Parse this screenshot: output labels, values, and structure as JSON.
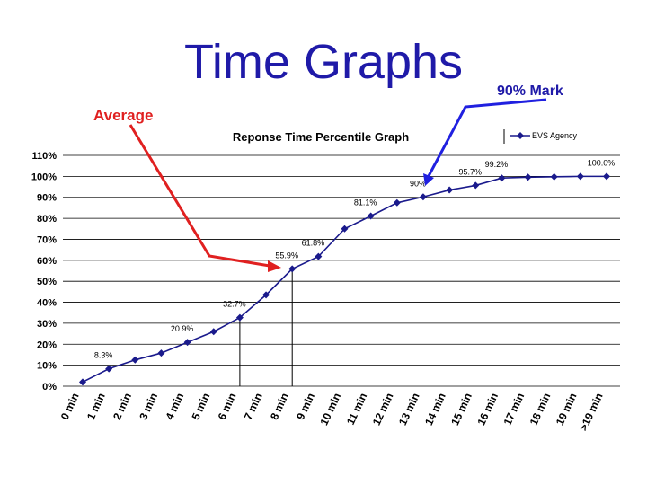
{
  "slide": {
    "title": "Time Graphs",
    "annotations": {
      "average_label": "Average",
      "mark_label": "90% Mark"
    },
    "colors": {
      "title": "#1f1aa8",
      "average_arrow": "#e02020",
      "mark_arrow": "#2020e0",
      "series": "#1a1a8c"
    }
  },
  "chart_data": {
    "type": "line",
    "title": "Reponse Time Percentile Graph",
    "categories": [
      "0 min",
      "1 min",
      "2 min",
      "3 min",
      "4 min",
      "5 min",
      "6 min",
      "7 min",
      "8 min",
      "9 min",
      "10 min",
      "11 min",
      "12 min",
      "13 min",
      "14 min",
      "15 min",
      "16 min",
      "17 min",
      "18 min",
      "19 min",
      ">19 min"
    ],
    "series": [
      {
        "name": "EVS Agency",
        "values": [
          2,
          8.3,
          12.5,
          15.8,
          20.9,
          26,
          32.7,
          43.5,
          55.9,
          61.8,
          75,
          81.1,
          87.4,
          90.2,
          93.5,
          95.7,
          99.2,
          99.6,
          99.8,
          100,
          100.0
        ]
      }
    ],
    "data_labels": [
      {
        "index": 1,
        "text": "8.3%"
      },
      {
        "index": 4,
        "text": "20.9%"
      },
      {
        "index": 6,
        "text": "32.7%"
      },
      {
        "index": 8,
        "text": "55.9%"
      },
      {
        "index": 9,
        "text": "61.8%"
      },
      {
        "index": 11,
        "text": "81.1%"
      },
      {
        "index": 13,
        "text": "90%"
      },
      {
        "index": 15,
        "text": "95.7%"
      },
      {
        "index": 16,
        "text": "99.2%"
      },
      {
        "index": 20,
        "text": "100.0%"
      }
    ],
    "ylim": [
      0,
      110
    ],
    "yticks": [
      "0%",
      "10%",
      "20%",
      "30%",
      "40%",
      "50%",
      "60%",
      "70%",
      "80%",
      "90%",
      "100%",
      "110%"
    ],
    "ytick_values": [
      0,
      10,
      20,
      30,
      40,
      50,
      60,
      70,
      80,
      90,
      100,
      110
    ],
    "grid": true,
    "legend": "top-right",
    "reference_lines_at": [
      6,
      8
    ]
  }
}
